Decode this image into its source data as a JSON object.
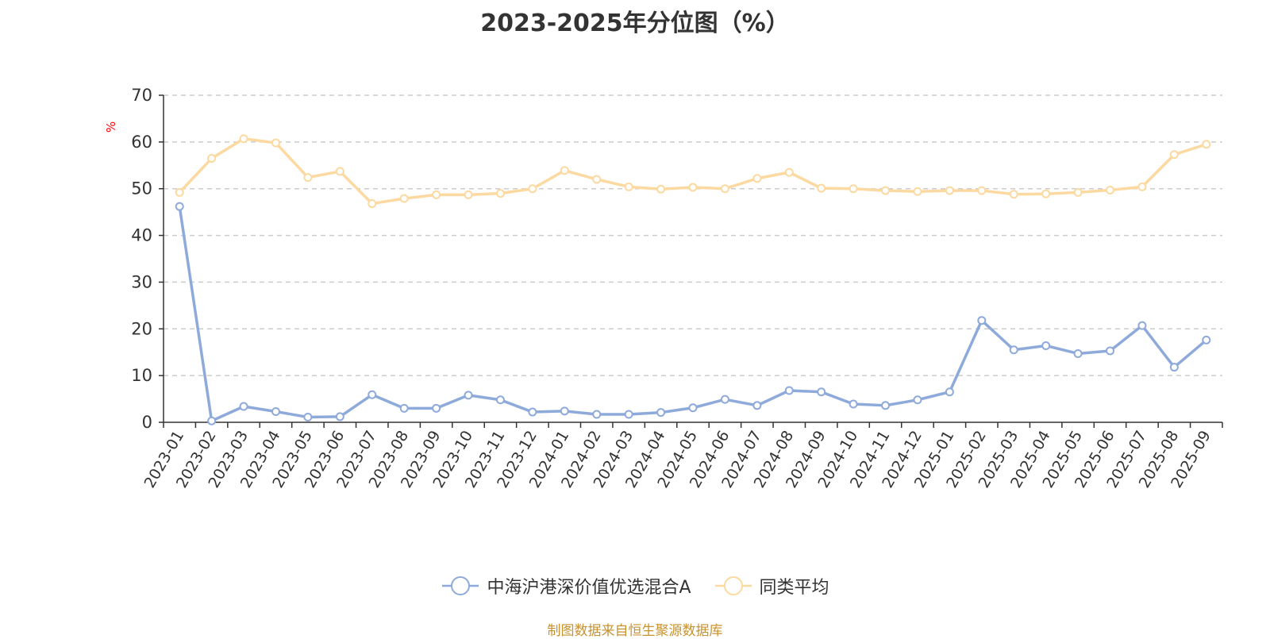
{
  "chart_data": {
    "type": "line",
    "title": "2023-2025年分位图（%）",
    "ylabel": "%",
    "ylim": [
      0,
      70
    ],
    "yticks": [
      0,
      10,
      20,
      30,
      40,
      50,
      60,
      70
    ],
    "grid": true,
    "legend_position": "bottom-center",
    "categories": [
      "2023-01",
      "2023-02",
      "2023-03",
      "2023-04",
      "2023-05",
      "2023-06",
      "2023-07",
      "2023-08",
      "2023-09",
      "2023-10",
      "2023-11",
      "2023-12",
      "2024-01",
      "2024-02",
      "2024-03",
      "2024-04",
      "2024-05",
      "2024-06",
      "2024-07",
      "2024-08",
      "2024-09",
      "2024-10",
      "2024-11",
      "2024-12",
      "2025-01",
      "2025-02",
      "2025-03",
      "2025-04",
      "2025-05",
      "2025-06",
      "2025-07",
      "2025-08",
      "2025-09"
    ],
    "series": [
      {
        "name": "中海沪港深价值优选混合A",
        "color": "#8eaadb",
        "values": [
          46.2,
          0.3,
          3.4,
          2.3,
          1.1,
          1.2,
          5.9,
          3.0,
          3.0,
          5.8,
          4.8,
          2.2,
          2.4,
          1.7,
          1.7,
          2.1,
          3.1,
          4.9,
          3.6,
          6.8,
          6.5,
          3.9,
          3.6,
          4.8,
          6.5,
          21.8,
          15.5,
          16.4,
          14.7,
          15.3,
          20.7,
          11.8,
          17.6
        ]
      },
      {
        "name": "同类平均",
        "color": "#fcd9a0",
        "values": [
          49.2,
          56.5,
          60.7,
          59.8,
          52.4,
          53.7,
          46.8,
          47.9,
          48.7,
          48.7,
          49.0,
          50.0,
          53.9,
          52.0,
          50.4,
          49.9,
          50.3,
          50.0,
          52.2,
          53.5,
          50.1,
          50.0,
          49.6,
          49.4,
          49.6,
          49.6,
          48.8,
          48.9,
          49.2,
          49.7,
          50.4,
          57.3,
          59.5
        ]
      }
    ],
    "source": "制图数据来自恒生聚源数据库"
  }
}
